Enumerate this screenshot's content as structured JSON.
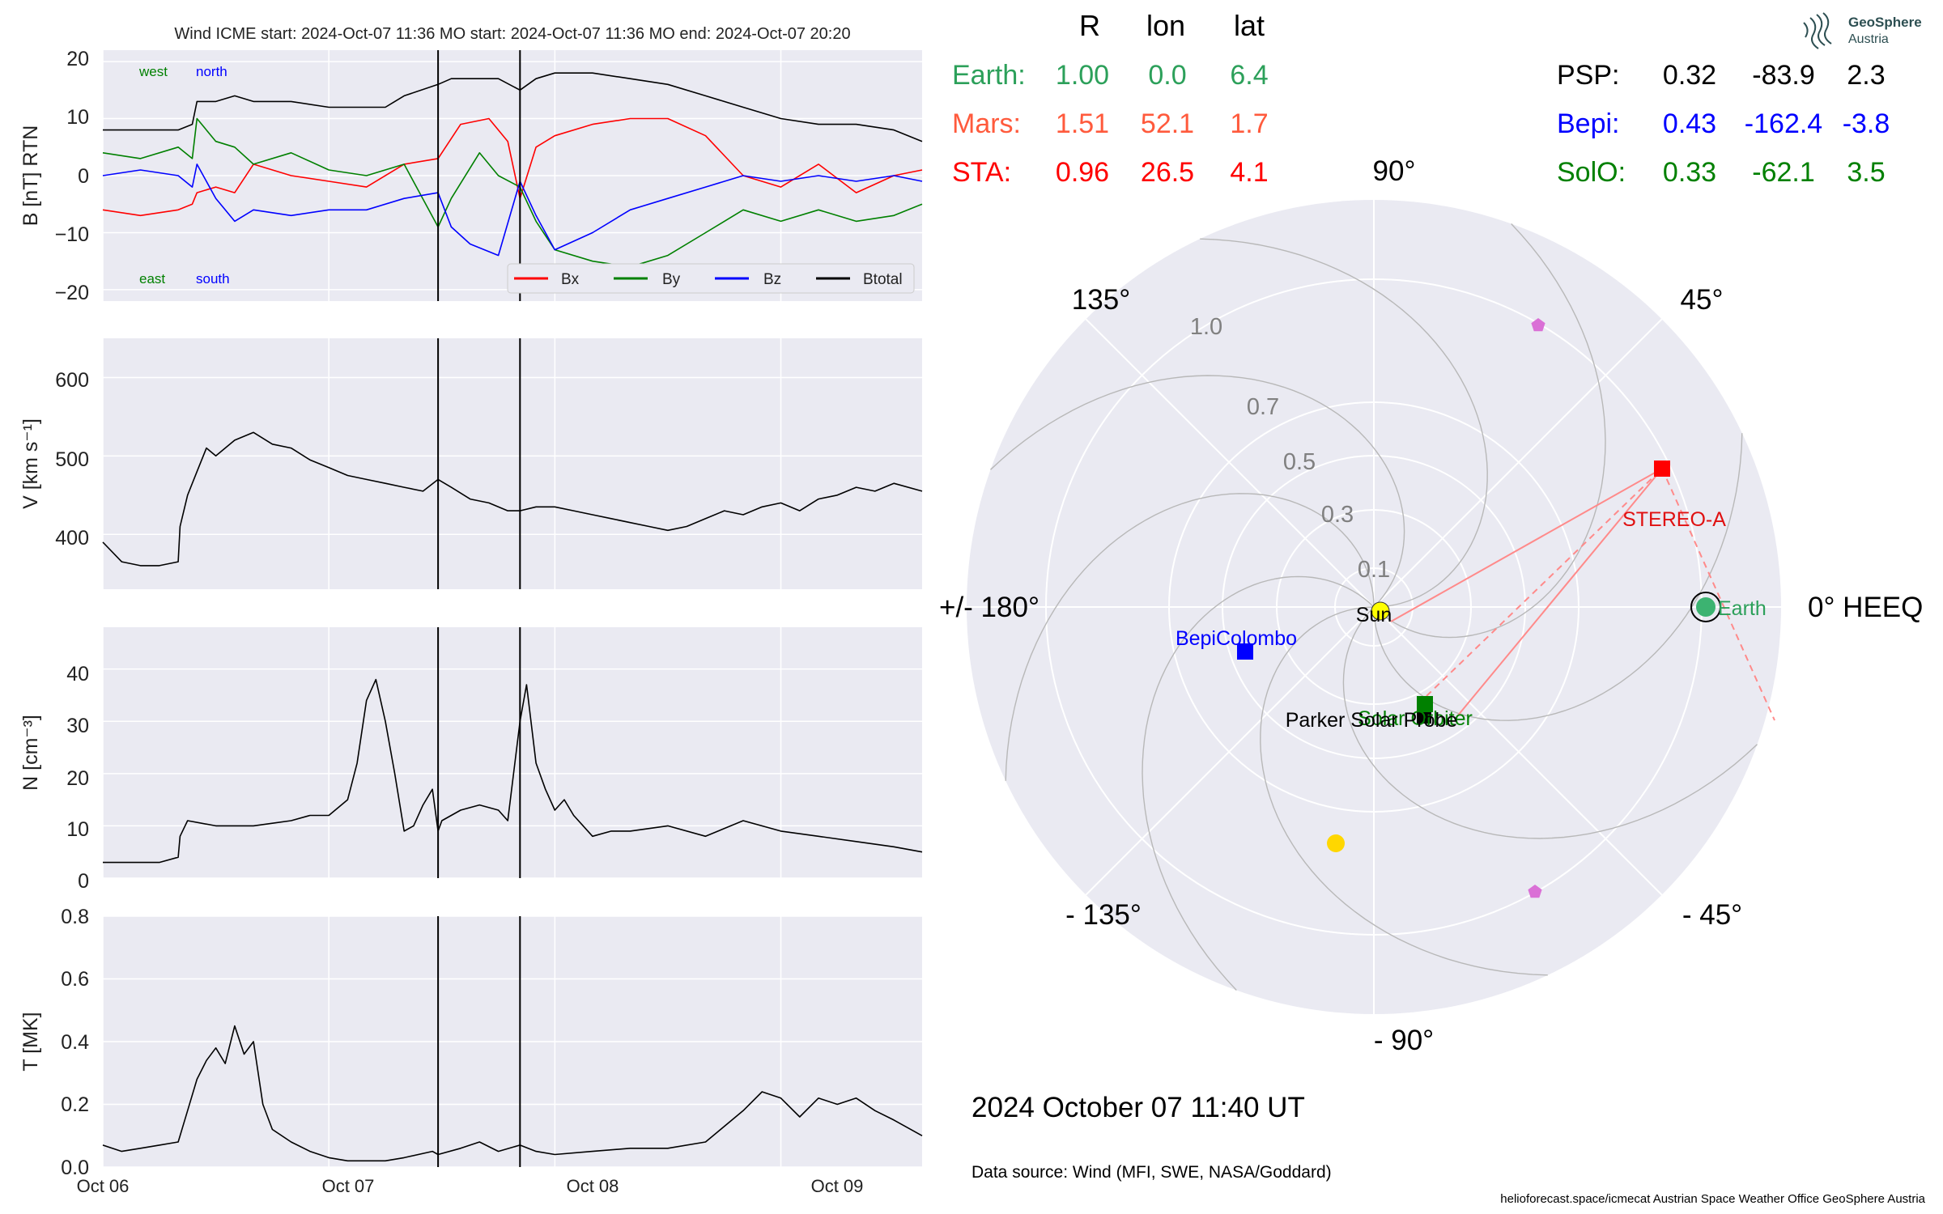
{
  "header": {
    "title": "Wind    ICME start: 2024-Oct-07 11:36   MO start: 2024-Oct-07 11:36   MO end: 2024-Oct-07 20:20"
  },
  "timeseries": {
    "x_ticks": [
      "Oct 06",
      "Oct 07",
      "Oct 08",
      "Oct 09"
    ],
    "panels": [
      {
        "key": "b",
        "ylabel": "B [nT] RTN",
        "yticks": [
          "20",
          "10",
          "0",
          "−10",
          "−20"
        ],
        "annotations": {
          "west": "west",
          "north": "north",
          "east": "east",
          "south": "south"
        },
        "legend": [
          "Bx",
          "By",
          "Bz",
          "Btotal"
        ]
      },
      {
        "key": "v",
        "ylabel": "V [km s⁻¹]",
        "yticks": [
          "600",
          "500",
          "400"
        ]
      },
      {
        "key": "n",
        "ylabel": "N [cm⁻³]",
        "yticks": [
          "40",
          "30",
          "20",
          "10",
          "0"
        ]
      },
      {
        "key": "t",
        "ylabel": "T [MK]",
        "yticks": [
          "0.8",
          "0.6",
          "0.4",
          "0.2",
          "0.0"
        ]
      }
    ]
  },
  "positions_table": {
    "headers": {
      "r": "R",
      "lon": "lon",
      "lat": "lat"
    },
    "left": [
      {
        "name": "Earth:",
        "r": "1.00",
        "lon": "0.0",
        "lat": "6.4",
        "color": "#2ca05a"
      },
      {
        "name": "Mars:",
        "r": "1.51",
        "lon": "52.1",
        "lat": "1.7",
        "color": "#ff5a3c"
      },
      {
        "name": "STA:",
        "r": "0.96",
        "lon": "26.5",
        "lat": "4.1",
        "color": "#ff0000"
      }
    ],
    "right": [
      {
        "name": "PSP:",
        "r": "0.32",
        "lon": "-83.9",
        "lat": "2.3",
        "color": "#000000"
      },
      {
        "name": "Bepi:",
        "r": "0.43",
        "lon": "-162.4",
        "lat": "-3.8",
        "color": "#0000ff"
      },
      {
        "name": "SolO:",
        "r": "0.33",
        "lon": "-62.1",
        "lat": "3.5",
        "color": "#008000"
      }
    ]
  },
  "polar": {
    "angle_labels": {
      "a90": "90°",
      "a45": "45°",
      "a0": "0° HEEQ",
      "am45": "- 45°",
      "am90": "- 90°",
      "am135": "- 135°",
      "a180": "+/- 180°",
      "a135": "135°"
    },
    "r_labels": [
      "0.1",
      "0.3",
      "0.5",
      "0.7",
      "1.0"
    ],
    "bodies": {
      "sun": "Sun",
      "earth": "Earth",
      "sta": "STEREO-A",
      "bepi": "BepiColombo",
      "psp": "Parker Solar Probe",
      "solo": "Solar Orbiter"
    }
  },
  "footer": {
    "datetime": "2024 October 07  11:40 UT",
    "source": "Data source: Wind (MFI, SWE, NASA/Goddard)",
    "credits": "helioforecast.space/icmecat   Austrian Space Weather Office   GeoSphere Austria"
  },
  "logo": {
    "line1": "GeoSphere",
    "line2": "Austria"
  },
  "chart_data": [
    {
      "type": "line",
      "title": "Wind    ICME start: 2024-Oct-07 11:36   MO start: 2024-Oct-07 11:36   MO end: 2024-Oct-07 20:20",
      "x_unit": "hours since 2024-Oct-06 00:00",
      "xlim": [
        0,
        87
      ],
      "ylabel": "B [nT] RTN",
      "ylim": [
        -22,
        22
      ],
      "vertical_lines_x": [
        35.6,
        44.3
      ],
      "series": [
        {
          "name": "Btotal",
          "color": "#000000",
          "x": [
            0,
            4,
            8,
            9.5,
            10,
            12,
            14,
            16,
            20,
            24,
            28,
            30,
            32,
            35.6,
            37,
            40,
            42,
            44.3,
            46,
            48,
            52,
            56,
            60,
            64,
            68,
            72,
            76,
            80,
            84,
            87
          ],
          "y": [
            8,
            8,
            8,
            9,
            13,
            13,
            14,
            13,
            13,
            12,
            12,
            12,
            14,
            16,
            17,
            17,
            17,
            15,
            17,
            18,
            18,
            17,
            16,
            14,
            12,
            10,
            9,
            9,
            8,
            6
          ]
        },
        {
          "name": "Bx",
          "color": "#ff0000",
          "x": [
            0,
            4,
            8,
            9.5,
            10,
            12,
            14,
            16,
            20,
            24,
            28,
            32,
            35.6,
            38,
            41,
            43,
            44.3,
            46,
            48,
            52,
            56,
            60,
            64,
            68,
            72,
            76,
            80,
            84,
            87
          ],
          "y": [
            -6,
            -7,
            -6,
            -5,
            -3,
            -2,
            -3,
            2,
            0,
            -1,
            -2,
            2,
            3,
            9,
            10,
            6,
            -4,
            5,
            7,
            9,
            10,
            10,
            7,
            0,
            -2,
            2,
            -3,
            0,
            1
          ]
        },
        {
          "name": "By",
          "color": "#008000",
          "x": [
            0,
            4,
            8,
            9.5,
            10,
            12,
            14,
            16,
            20,
            24,
            28,
            32,
            35.6,
            37,
            40,
            42,
            44.3,
            46,
            48,
            52,
            56,
            60,
            64,
            68,
            72,
            76,
            80,
            84,
            87
          ],
          "y": [
            4,
            3,
            5,
            3,
            10,
            6,
            5,
            2,
            4,
            1,
            0,
            2,
            -9,
            -4,
            4,
            0,
            -2,
            -8,
            -13,
            -15,
            -16,
            -14,
            -10,
            -6,
            -8,
            -6,
            -8,
            -7,
            -5
          ]
        },
        {
          "name": "Bz",
          "color": "#0000ff",
          "x": [
            0,
            4,
            8,
            9.5,
            10,
            12,
            14,
            16,
            20,
            24,
            28,
            32,
            35.6,
            37,
            39,
            42,
            44.3,
            46,
            48,
            52,
            56,
            60,
            64,
            68,
            72,
            76,
            80,
            84,
            87
          ],
          "y": [
            0,
            1,
            0,
            -2,
            2,
            -4,
            -8,
            -6,
            -7,
            -6,
            -6,
            -4,
            -3,
            -9,
            -12,
            -14,
            -1,
            -7,
            -13,
            -10,
            -6,
            -4,
            -2,
            0,
            -1,
            0,
            -1,
            0,
            -1
          ]
        }
      ]
    },
    {
      "type": "line",
      "x_unit": "hours since 2024-Oct-06 00:00",
      "xlim": [
        0,
        87
      ],
      "ylabel": "V [km s⁻¹]",
      "ylim": [
        330,
        650
      ],
      "vertical_lines_x": [
        35.6,
        44.3
      ],
      "series": [
        {
          "name": "",
          "color": "#000000",
          "x": [
            0,
            2,
            4,
            6,
            8,
            8.2,
            9,
            10,
            11,
            12,
            14,
            16,
            18,
            20,
            22,
            24,
            26,
            28,
            30,
            32,
            34,
            35.6,
            37,
            39,
            41,
            43,
            44.3,
            46,
            48,
            50,
            52,
            54,
            56,
            58,
            60,
            62,
            64,
            66,
            68,
            70,
            72,
            74,
            76,
            78,
            80,
            82,
            84,
            87
          ],
          "y": [
            390,
            365,
            360,
            360,
            365,
            410,
            450,
            480,
            510,
            500,
            520,
            530,
            515,
            510,
            495,
            485,
            475,
            470,
            465,
            460,
            455,
            470,
            460,
            445,
            440,
            430,
            430,
            435,
            435,
            430,
            425,
            420,
            415,
            410,
            405,
            410,
            420,
            430,
            425,
            435,
            440,
            430,
            445,
            450,
            460,
            455,
            465,
            455
          ]
        }
      ]
    },
    {
      "type": "line",
      "x_unit": "hours since 2024-Oct-06 00:00",
      "xlim": [
        0,
        87
      ],
      "ylabel": "N [cm⁻³]",
      "ylim": [
        0,
        48
      ],
      "vertical_lines_x": [
        35.6,
        44.3
      ],
      "series": [
        {
          "name": "",
          "color": "#000000",
          "x": [
            0,
            2,
            4,
            6,
            8,
            8.2,
            9,
            12,
            16,
            20,
            22,
            24,
            26,
            27,
            28,
            29,
            30,
            31,
            32,
            33,
            34,
            35,
            35.6,
            36,
            38,
            40,
            42,
            43,
            44.3,
            45,
            46,
            47,
            48,
            49,
            50,
            52,
            54,
            56,
            60,
            64,
            68,
            72,
            76,
            80,
            84,
            87
          ],
          "y": [
            3,
            3,
            3,
            3,
            4,
            8,
            11,
            10,
            10,
            11,
            12,
            12,
            15,
            22,
            34,
            38,
            30,
            20,
            9,
            10,
            14,
            17,
            9,
            11,
            13,
            14,
            13,
            11,
            30,
            37,
            22,
            17,
            13,
            15,
            12,
            8,
            9,
            9,
            10,
            8,
            11,
            9,
            8,
            7,
            6,
            5
          ]
        }
      ]
    },
    {
      "type": "line",
      "x_unit": "hours since 2024-Oct-06 00:00",
      "xlim": [
        0,
        87
      ],
      "ylabel": "T [MK]",
      "ylim": [
        0,
        0.8
      ],
      "vertical_lines_x": [
        35.6,
        44.3
      ],
      "series": [
        {
          "name": "",
          "color": "#000000",
          "x": [
            0,
            2,
            4,
            6,
            8,
            9,
            10,
            11,
            12,
            13,
            14,
            15,
            16,
            17,
            18,
            20,
            22,
            24,
            26,
            28,
            30,
            32,
            35,
            35.6,
            38,
            40,
            42,
            44.3,
            46,
            48,
            52,
            56,
            60,
            64,
            68,
            70,
            72,
            74,
            76,
            78,
            80,
            82,
            84,
            87
          ],
          "y": [
            0.07,
            0.05,
            0.06,
            0.07,
            0.08,
            0.18,
            0.28,
            0.34,
            0.38,
            0.33,
            0.45,
            0.36,
            0.4,
            0.2,
            0.12,
            0.08,
            0.05,
            0.03,
            0.02,
            0.02,
            0.02,
            0.03,
            0.05,
            0.04,
            0.06,
            0.08,
            0.05,
            0.07,
            0.05,
            0.04,
            0.05,
            0.06,
            0.06,
            0.08,
            0.18,
            0.24,
            0.22,
            0.16,
            0.22,
            0.2,
            0.22,
            0.18,
            0.15,
            0.1
          ]
        }
      ]
    },
    {
      "type": "scatter",
      "subtype": "polar",
      "r_ticks": [
        0.1,
        0.3,
        0.5,
        0.7,
        1.0
      ],
      "theta_zero": "right",
      "points": [
        {
          "name": "Sun",
          "r": 0.0,
          "lon": 0.0
        },
        {
          "name": "Earth",
          "r": 1.0,
          "lon": 0.0
        },
        {
          "name": "STEREO-A",
          "r": 0.96,
          "lon": 26.5
        },
        {
          "name": "BepiColombo",
          "r": 0.43,
          "lon": -162.4
        },
        {
          "name": "Parker Solar Probe",
          "r": 0.32,
          "lon": -83.9
        },
        {
          "name": "Solar Orbiter",
          "r": 0.33,
          "lon": -62.1
        },
        {
          "name": "Mars",
          "r": 1.51,
          "lon": 52.1
        }
      ]
    }
  ]
}
